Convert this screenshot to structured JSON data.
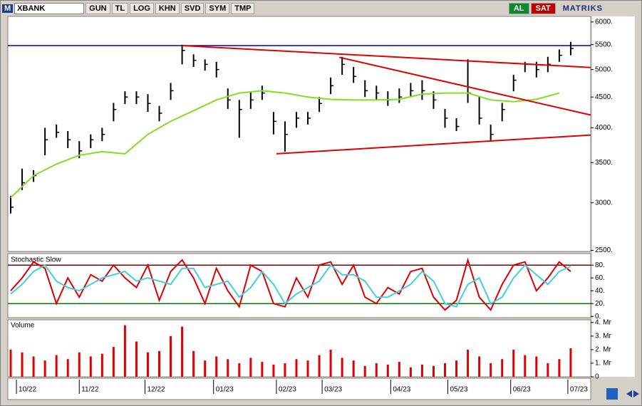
{
  "toolbar": {
    "logo": "M",
    "symbol": "XBANK",
    "buttons": [
      "GUN",
      "TL",
      "LOG",
      "KHN",
      "SVD",
      "SYM",
      "TMP"
    ],
    "buy": "AL",
    "sell": "SAT",
    "brand": "MATRIKS"
  },
  "chart_data": [
    {
      "type": "ohlc",
      "log": true,
      "xlim": [
        0,
        204
      ],
      "ylim": [
        2490,
        6130
      ],
      "color": "#000000",
      "yticks": [
        {
          "value": 6000,
          "label": "6000."
        },
        {
          "value": 5500,
          "label": "5500."
        },
        {
          "value": 5000,
          "label": "5000."
        },
        {
          "value": 4500,
          "label": "4500."
        },
        {
          "value": 4000,
          "label": "4000."
        },
        {
          "value": 3500,
          "label": "3500."
        },
        {
          "value": 3000,
          "label": "3000."
        },
        {
          "value": 2500,
          "label": "2500."
        }
      ],
      "x": [
        1,
        5,
        9,
        13,
        17,
        21,
        25,
        29,
        33,
        37,
        41,
        45,
        49,
        53,
        57,
        61,
        65,
        69,
        73,
        77,
        81,
        85,
        89,
        93,
        97,
        101,
        105,
        109,
        113,
        117,
        121,
        125,
        129,
        133,
        137,
        141,
        145,
        149,
        153,
        157,
        161,
        165,
        169,
        173,
        177,
        181,
        185,
        189,
        193,
        197
      ],
      "high": [
        3080,
        3420,
        3400,
        4000,
        4050,
        3950,
        3800,
        3900,
        4000,
        4400,
        4600,
        4600,
        4550,
        4350,
        4750,
        5500,
        5300,
        5200,
        5150,
        4650,
        4450,
        4600,
        4700,
        4250,
        4100,
        4250,
        4250,
        4500,
        4850,
        5250,
        5050,
        4800,
        4700,
        4600,
        4650,
        4750,
        4800,
        4600,
        4300,
        4150,
        5200,
        4500,
        4050,
        4400,
        4900,
        5150,
        5150,
        5250,
        5400,
        5560
      ],
      "low": [
        2880,
        3150,
        3250,
        3600,
        3850,
        3700,
        3560,
        3700,
        3800,
        4100,
        4380,
        4380,
        4250,
        4100,
        4450,
        5100,
        5050,
        4980,
        4850,
        4300,
        3850,
        4300,
        4450,
        3900,
        3650,
        4000,
        4050,
        4250,
        4550,
        4900,
        4750,
        4500,
        4450,
        4350,
        4400,
        4500,
        4450,
        4300,
        4000,
        3950,
        4400,
        4050,
        3800,
        4100,
        4600,
        4950,
        4850,
        4950,
        5150,
        5280
      ],
      "close": [
        2950,
        3240,
        3330,
        3820,
        3930,
        3820,
        3660,
        3820,
        3900,
        4290,
        4500,
        4500,
        4390,
        4230,
        4610,
        5380,
        5180,
        5100,
        5000,
        4450,
        4290,
        4450,
        4570,
        4100,
        3900,
        4150,
        4150,
        4390,
        4700,
        5100,
        4870,
        4610,
        4570,
        4450,
        4500,
        4610,
        4610,
        4450,
        4150,
        4020,
        4570,
        4150,
        3900,
        4290,
        4800,
        5100,
        5000,
        5100,
        5280,
        5420
      ],
      "overlays": [
        {
          "type": "line",
          "color": "#80e020",
          "x": [
            1,
            9,
            17,
            25,
            33,
            41,
            49,
            57,
            65,
            73,
            81,
            89,
            97,
            105,
            113,
            121,
            129,
            137,
            145,
            153,
            161,
            169,
            177,
            185,
            193
          ],
          "values": [
            3060,
            3330,
            3480,
            3600,
            3650,
            3620,
            3900,
            4100,
            4270,
            4450,
            4570,
            4610,
            4570,
            4500,
            4460,
            4450,
            4450,
            4460,
            4550,
            4570,
            4570,
            4450,
            4420,
            4460,
            4570
          ]
        }
      ],
      "lines": [
        {
          "color": "#e00000",
          "x": [
            61,
            204
          ],
          "values": [
            5480,
            5040
          ]
        },
        {
          "color": "#e00000",
          "x": [
            116,
            204
          ],
          "values": [
            5240,
            4200
          ]
        },
        {
          "color": "#e00000",
          "x": [
            94,
            204
          ],
          "values": [
            3620,
            3890
          ]
        }
      ],
      "hlines": [
        {
          "value": 5480,
          "color": "#0000cc"
        }
      ]
    },
    {
      "type": "line",
      "title": "Stochastic Slow",
      "xlim": [
        0,
        204
      ],
      "ylim": [
        -2,
        98
      ],
      "yticks": [
        {
          "value": 80,
          "label": "80."
        },
        {
          "value": 60,
          "label": "60."
        },
        {
          "value": 40,
          "label": "40."
        },
        {
          "value": 20,
          "label": "20."
        },
        {
          "value": 0,
          "label": "0."
        }
      ],
      "hlines": [
        {
          "value": 80,
          "color": "#800000"
        },
        {
          "value": 20,
          "color": "#008000"
        }
      ],
      "x": [
        1,
        5,
        9,
        13,
        17,
        21,
        25,
        29,
        33,
        37,
        41,
        45,
        49,
        53,
        57,
        61,
        65,
        69,
        73,
        77,
        81,
        85,
        89,
        93,
        97,
        101,
        105,
        109,
        113,
        117,
        121,
        125,
        129,
        133,
        137,
        141,
        145,
        149,
        153,
        157,
        161,
        165,
        169,
        173,
        177,
        181,
        185,
        189,
        193,
        197
      ],
      "series": [
        {
          "color": "#e00000",
          "values": [
            40,
            60,
            85,
            75,
            20,
            60,
            30,
            65,
            55,
            80,
            60,
            45,
            80,
            25,
            70,
            88,
            60,
            20,
            75,
            40,
            15,
            80,
            70,
            20,
            15,
            60,
            30,
            80,
            85,
            50,
            80,
            30,
            20,
            45,
            35,
            70,
            75,
            30,
            10,
            25,
            88,
            30,
            10,
            50,
            80,
            85,
            40,
            60,
            85,
            70
          ]
        },
        {
          "color": "#40d0e0",
          "values": [
            35,
            50,
            70,
            80,
            55,
            45,
            40,
            50,
            60,
            65,
            70,
            55,
            60,
            55,
            50,
            75,
            75,
            45,
            50,
            55,
            30,
            45,
            70,
            50,
            20,
            35,
            45,
            55,
            80,
            65,
            65,
            55,
            30,
            30,
            40,
            50,
            70,
            55,
            20,
            15,
            50,
            60,
            20,
            30,
            60,
            80,
            65,
            50,
            70,
            78
          ]
        }
      ]
    },
    {
      "type": "bar",
      "title": "Volume",
      "xlim": [
        0,
        204
      ],
      "ylim": [
        0,
        4.2
      ],
      "color": "#e00000",
      "yticks": [
        {
          "value": 4,
          "label": "4. Mr"
        },
        {
          "value": 3,
          "label": "3. Mr"
        },
        {
          "value": 2,
          "label": "2. Mr"
        },
        {
          "value": 1,
          "label": "1. Mr"
        },
        0
      ],
      "xticks": [
        {
          "value": 3,
          "label": "10/22"
        },
        {
          "value": 25,
          "label": "11/22"
        },
        {
          "value": 48,
          "label": "12/22"
        },
        {
          "value": 72,
          "label": "01/23"
        },
        {
          "value": 94,
          "label": "02/23"
        },
        {
          "value": 110,
          "label": "03/23"
        },
        {
          "value": 134,
          "label": "04/23"
        },
        {
          "value": 154,
          "label": "05/23"
        },
        {
          "value": 176,
          "label": "06/23"
        },
        {
          "value": 196,
          "label": "07/23"
        }
      ],
      "x": [
        1,
        5,
        9,
        13,
        17,
        21,
        25,
        29,
        33,
        37,
        41,
        45,
        49,
        53,
        57,
        61,
        65,
        69,
        73,
        77,
        81,
        85,
        89,
        93,
        97,
        101,
        105,
        109,
        113,
        117,
        121,
        125,
        129,
        133,
        137,
        141,
        145,
        149,
        153,
        157,
        161,
        165,
        169,
        173,
        177,
        181,
        185,
        189,
        193,
        197
      ],
      "values": [
        2.0,
        1.8,
        1.5,
        1.2,
        1.6,
        1.3,
        1.8,
        1.5,
        1.7,
        2.2,
        3.8,
        2.6,
        1.8,
        1.9,
        3.0,
        3.7,
        1.9,
        1.2,
        1.5,
        1.3,
        1.0,
        1.4,
        1.1,
        0.9,
        1.0,
        1.3,
        1.2,
        1.6,
        2.0,
        1.4,
        1.2,
        0.8,
        1.0,
        0.9,
        1.1,
        0.7,
        0.9,
        0.8,
        1.0,
        1.2,
        2.0,
        1.5,
        1.0,
        1.3,
        2.0,
        1.6,
        1.5,
        1.0,
        1.3,
        2.1
      ]
    }
  ]
}
